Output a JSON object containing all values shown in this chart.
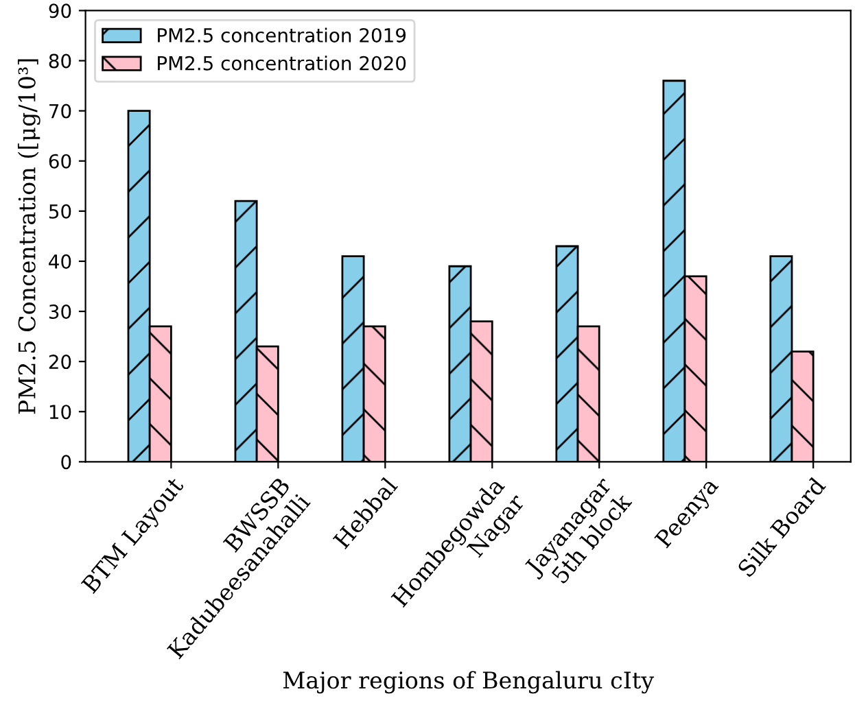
{
  "chart_data": {
    "type": "bar",
    "xlabel": "Major regions of Bengaluru cIty",
    "ylabel": "PM2.5 Concentration ([μg/10³]",
    "categories": [
      "BTM Layout",
      "BWSSB\nKadubeesanahalli",
      "Hebbal",
      "Hombegowda\nNagar",
      "Jayanagar\n5th block",
      "Peenya",
      "Silk Board"
    ],
    "series": [
      {
        "name": "PM2.5 concentration 2019",
        "color": "#87ceeb",
        "values": [
          70,
          52,
          41,
          39,
          43,
          76,
          41
        ]
      },
      {
        "name": "PM2.5 concentration 2020",
        "color": "#ffc0cb",
        "values": [
          27,
          23,
          27,
          28,
          27,
          37,
          22
        ]
      }
    ],
    "ylim": [
      0,
      90
    ],
    "yticks": [
      0,
      10,
      20,
      30,
      40,
      50,
      60,
      70,
      80,
      90
    ],
    "grid": false,
    "legend": "top left"
  }
}
